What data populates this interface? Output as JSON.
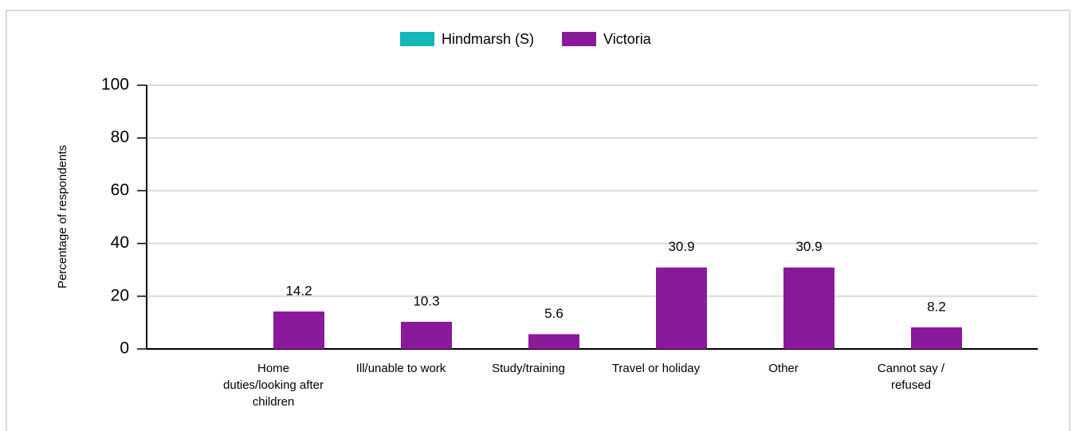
{
  "chart_data": {
    "type": "bar",
    "y_label": "Percentage of respondents",
    "categories": [
      "Home duties/looking after children",
      "Ill/unable to work",
      "Study/training",
      "Travel or holiday",
      "Other",
      "Cannot say / refused"
    ],
    "series": [
      {
        "name": "Hindmarsh (S)",
        "color": "#12b8b8",
        "values": [
          null,
          null,
          null,
          null,
          null,
          null
        ]
      },
      {
        "name": "Victoria",
        "color": "#8a1a9b",
        "values": [
          14.2,
          10.3,
          5.6,
          30.9,
          30.9,
          8.2
        ]
      }
    ],
    "ylim": [
      0,
      100
    ],
    "yticks": [
      0,
      20,
      40,
      60,
      80,
      100
    ],
    "grid": true,
    "legend": "top"
  }
}
